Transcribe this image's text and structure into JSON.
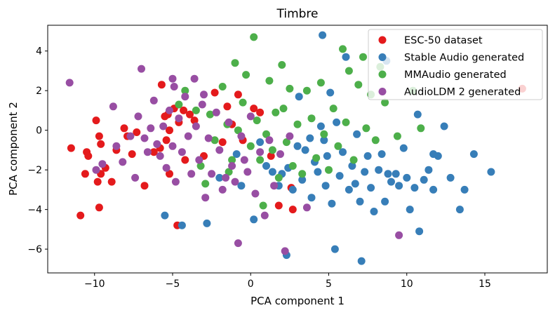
{
  "chart_data": {
    "type": "scatter",
    "title": "Timbre",
    "xlabel": "PCA component 1",
    "ylabel": "PCA component 2",
    "xlim": [
      -13,
      19
    ],
    "ylim": [
      -7.2,
      5.3
    ],
    "xticks": [
      -10,
      -5,
      0,
      5,
      10,
      15
    ],
    "yticks": [
      -6,
      -4,
      -2,
      0,
      2,
      4
    ],
    "legend_position": "top-right",
    "grid": false,
    "series": [
      {
        "name": "ESC-50 dataset",
        "color": "#e41a1c",
        "points": [
          [
            -11.5,
            -0.9
          ],
          [
            -10.9,
            -4.3
          ],
          [
            -10.6,
            -2.2
          ],
          [
            -10.5,
            -1.1
          ],
          [
            -10.4,
            -1.3
          ],
          [
            -9.9,
            0.5
          ],
          [
            -9.8,
            -2.6
          ],
          [
            -9.7,
            -0.3
          ],
          [
            -9.7,
            -3.9
          ],
          [
            -9.6,
            -2.2
          ],
          [
            -9.6,
            -0.7
          ],
          [
            -9.3,
            -1.9
          ],
          [
            -8.9,
            -2.6
          ],
          [
            -8.6,
            -1.0
          ],
          [
            -8.1,
            0.1
          ],
          [
            -7.9,
            -0.3
          ],
          [
            -7.6,
            -1.2
          ],
          [
            -7.3,
            -0.1
          ],
          [
            -6.8,
            -2.8
          ],
          [
            -6.2,
            -1.1
          ],
          [
            -5.8,
            -0.9
          ],
          [
            -5.7,
            2.3
          ],
          [
            -5.5,
            0.7
          ],
          [
            -5.4,
            -0.5
          ],
          [
            -5.3,
            0.8
          ],
          [
            -5.2,
            -2.2
          ],
          [
            -5.2,
            0.0
          ],
          [
            -4.9,
            1.1
          ],
          [
            -4.7,
            -4.8
          ],
          [
            -4.6,
            0.4
          ],
          [
            -4.3,
            1.0
          ],
          [
            -4.2,
            -1.5
          ],
          [
            -3.9,
            0.8
          ],
          [
            -3.6,
            0.5
          ],
          [
            -3.0,
            -1.3
          ],
          [
            -2.3,
            1.9
          ],
          [
            -1.8,
            -0.6
          ],
          [
            -1.5,
            1.2
          ],
          [
            -1.2,
            0.3
          ],
          [
            -0.8,
            1.8
          ],
          [
            -0.5,
            -0.5
          ],
          [
            0.2,
            1.1
          ],
          [
            0.6,
            0.9
          ],
          [
            1.3,
            -1.3
          ],
          [
            1.8,
            -3.8
          ],
          [
            2.6,
            -2.9
          ],
          [
            2.7,
            -4.0
          ],
          [
            17.4,
            2.1
          ]
        ]
      },
      {
        "name": "Stable Audio generated",
        "color": "#377eb8",
        "points": [
          [
            -5.5,
            -4.3
          ],
          [
            -4.4,
            -4.8
          ],
          [
            -2.8,
            -4.7
          ],
          [
            -2.0,
            -2.4
          ],
          [
            -0.9,
            -1.2
          ],
          [
            -0.6,
            -2.8
          ],
          [
            0.2,
            -4.5
          ],
          [
            0.6,
            -0.6
          ],
          [
            1.0,
            -1.8
          ],
          [
            1.4,
            -2.1
          ],
          [
            1.8,
            -2.8
          ],
          [
            2.0,
            -2.2
          ],
          [
            2.3,
            -6.3
          ],
          [
            2.4,
            -1.9
          ],
          [
            2.7,
            -3.0
          ],
          [
            3.0,
            -0.8
          ],
          [
            3.1,
            1.7
          ],
          [
            3.3,
            -2.5
          ],
          [
            3.5,
            -1.0
          ],
          [
            3.8,
            -0.4
          ],
          [
            3.9,
            -3.4
          ],
          [
            4.1,
            -1.6
          ],
          [
            4.3,
            -2.1
          ],
          [
            4.5,
            0.2
          ],
          [
            4.7,
            -0.5
          ],
          [
            4.8,
            -2.8
          ],
          [
            4.9,
            -1.3
          ],
          [
            5.1,
            1.9
          ],
          [
            5.2,
            -3.7
          ],
          [
            5.4,
            -6.0
          ],
          [
            5.5,
            0.4
          ],
          [
            5.7,
            -2.3
          ],
          [
            5.9,
            -1.1
          ],
          [
            6.1,
            3.7
          ],
          [
            6.3,
            -3.0
          ],
          [
            6.5,
            -1.8
          ],
          [
            6.7,
            -2.7
          ],
          [
            6.8,
            -0.2
          ],
          [
            7.0,
            -3.6
          ],
          [
            7.1,
            -6.6
          ],
          [
            7.3,
            -2.1
          ],
          [
            7.5,
            -1.3
          ],
          [
            7.7,
            -2.9
          ],
          [
            7.9,
            -4.1
          ],
          [
            8.2,
            -2.0
          ],
          [
            8.4,
            -1.2
          ],
          [
            8.6,
            -3.6
          ],
          [
            8.8,
            -2.2
          ],
          [
            9.0,
            -2.6
          ],
          [
            9.3,
            -2.2
          ],
          [
            9.5,
            -2.8
          ],
          [
            9.8,
            -0.9
          ],
          [
            10.0,
            -2.4
          ],
          [
            10.2,
            -4.0
          ],
          [
            10.5,
            -2.9
          ],
          [
            10.7,
            0.8
          ],
          [
            10.8,
            -5.1
          ],
          [
            11.1,
            -2.5
          ],
          [
            11.4,
            -2.0
          ],
          [
            11.7,
            -3.0
          ],
          [
            12.0,
            -1.3
          ],
          [
            12.4,
            0.2
          ],
          [
            12.8,
            -2.4
          ],
          [
            13.4,
            -4.0
          ],
          [
            13.7,
            -3.0
          ],
          [
            14.3,
            -1.2
          ],
          [
            15.4,
            -2.1
          ],
          [
            4.6,
            4.8
          ],
          [
            11.7,
            -1.2
          ],
          [
            8.7,
            3.5
          ]
        ]
      },
      {
        "name": "MMAudio generated",
        "color": "#4daf4a",
        "points": [
          [
            -4.6,
            1.3
          ],
          [
            -4.2,
            2.0
          ],
          [
            -3.5,
            1.0
          ],
          [
            -3.2,
            -1.8
          ],
          [
            -2.6,
            0.8
          ],
          [
            -2.3,
            -0.5
          ],
          [
            -1.8,
            2.2
          ],
          [
            -1.5,
            0.3
          ],
          [
            -1.2,
            -1.5
          ],
          [
            -1.0,
            3.4
          ],
          [
            -0.8,
            0.0
          ],
          [
            -0.5,
            1.4
          ],
          [
            -0.3,
            2.8
          ],
          [
            0.0,
            -0.8
          ],
          [
            0.2,
            4.7
          ],
          [
            0.4,
            0.5
          ],
          [
            0.6,
            -1.5
          ],
          [
            0.8,
            -3.8
          ],
          [
            1.0,
            -0.2
          ],
          [
            1.2,
            2.5
          ],
          [
            1.4,
            -1.0
          ],
          [
            1.6,
            0.9
          ],
          [
            1.8,
            -2.4
          ],
          [
            2.0,
            3.3
          ],
          [
            2.1,
            1.1
          ],
          [
            2.3,
            -0.6
          ],
          [
            2.5,
            2.1
          ],
          [
            2.7,
            -1.8
          ],
          [
            3.0,
            0.3
          ],
          [
            3.3,
            -2.2
          ],
          [
            3.6,
            2.0
          ],
          [
            3.9,
            0.6
          ],
          [
            4.2,
            -1.4
          ],
          [
            4.5,
            2.4
          ],
          [
            4.7,
            -0.2
          ],
          [
            5.0,
            -2.0
          ],
          [
            5.3,
            1.1
          ],
          [
            5.6,
            -0.8
          ],
          [
            5.9,
            4.1
          ],
          [
            6.1,
            0.4
          ],
          [
            6.3,
            3.0
          ],
          [
            6.6,
            -1.5
          ],
          [
            6.9,
            2.3
          ],
          [
            7.2,
            3.7
          ],
          [
            7.4,
            0.1
          ],
          [
            7.7,
            1.8
          ],
          [
            8.0,
            -0.5
          ],
          [
            8.3,
            3.2
          ],
          [
            8.6,
            1.4
          ],
          [
            9.4,
            -0.3
          ],
          [
            10.4,
            2.0
          ],
          [
            10.9,
            0.1
          ],
          [
            -2.9,
            -2.7
          ],
          [
            -1.4,
            -2.1
          ]
        ]
      },
      {
        "name": "AudioLDM 2 generated",
        "color": "#984ea3",
        "points": [
          [
            -11.6,
            2.4
          ],
          [
            -9.9,
            -2.0
          ],
          [
            -9.5,
            -1.7
          ],
          [
            -8.8,
            1.2
          ],
          [
            -8.6,
            -0.8
          ],
          [
            -8.2,
            -1.6
          ],
          [
            -7.7,
            -0.3
          ],
          [
            -7.4,
            -2.4
          ],
          [
            -7.2,
            0.7
          ],
          [
            -7.0,
            3.1
          ],
          [
            -6.8,
            -0.4
          ],
          [
            -6.6,
            -1.1
          ],
          [
            -6.4,
            0.1
          ],
          [
            -6.2,
            1.5
          ],
          [
            -6.0,
            -0.7
          ],
          [
            -5.8,
            -1.3
          ],
          [
            -5.6,
            0.2
          ],
          [
            -5.4,
            -1.9
          ],
          [
            -5.2,
            1.0
          ],
          [
            -5.0,
            -0.8
          ],
          [
            -4.9,
            2.2
          ],
          [
            -4.8,
            -2.6
          ],
          [
            -4.6,
            0.6
          ],
          [
            -4.4,
            -1.1
          ],
          [
            -4.2,
            1.7
          ],
          [
            -4.0,
            -0.3
          ],
          [
            -3.8,
            -2.2
          ],
          [
            -3.6,
            2.6
          ],
          [
            -3.5,
            0.2
          ],
          [
            -3.3,
            -1.5
          ],
          [
            -3.1,
            1.3
          ],
          [
            -2.9,
            -3.4
          ],
          [
            -2.7,
            -0.4
          ],
          [
            -2.5,
            -2.2
          ],
          [
            -2.2,
            0.9
          ],
          [
            -2.0,
            -1.0
          ],
          [
            -1.8,
            -3.0
          ],
          [
            -1.6,
            -2.4
          ],
          [
            -1.4,
            0.4
          ],
          [
            -1.2,
            -1.8
          ],
          [
            -1.0,
            -2.6
          ],
          [
            -0.8,
            -5.7
          ],
          [
            -0.6,
            -0.3
          ],
          [
            -0.4,
            -1.5
          ],
          [
            -0.2,
            -2.1
          ],
          [
            0.0,
            0.7
          ],
          [
            0.3,
            -3.2
          ],
          [
            0.6,
            -1.1
          ],
          [
            0.9,
            -4.3
          ],
          [
            1.2,
            -0.5
          ],
          [
            1.5,
            -2.8
          ],
          [
            1.9,
            -1.2
          ],
          [
            2.2,
            -6.1
          ],
          [
            2.5,
            -0.3
          ],
          [
            3.6,
            -3.9
          ],
          [
            9.5,
            -5.3
          ],
          [
            -5.0,
            2.6
          ],
          [
            -3.0,
            1.8
          ]
        ]
      }
    ]
  }
}
